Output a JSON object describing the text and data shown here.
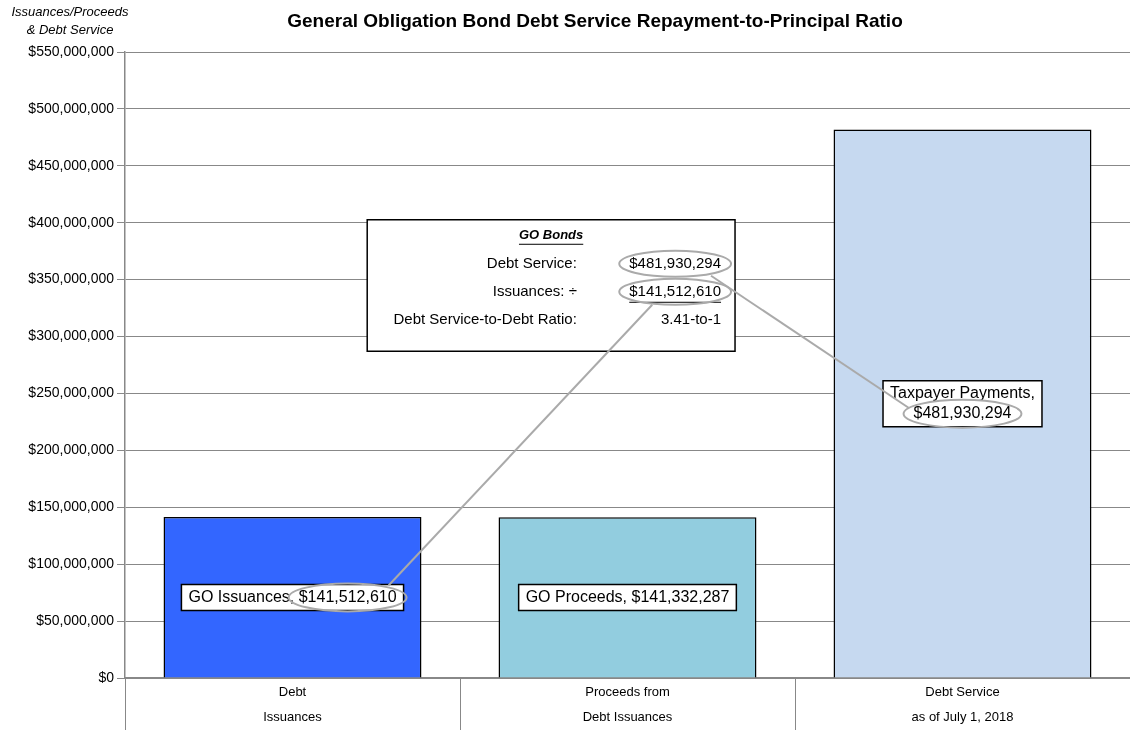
{
  "chart_data": {
    "type": "bar",
    "title": "General Obligation Bond Debt Service Repayment-to-Principal Ratio",
    "ylabel": "Issuances/Proceeds\n& Debt Service",
    "categories": [
      "Debt\nIssuances",
      "Proceeds from\nDebt Issuances",
      "Debt Service\nas of July 1, 2018"
    ],
    "values": [
      141512610,
      141332287,
      481930294
    ],
    "colors": [
      "#3366ff",
      "#92cddf",
      "#c6d9f0"
    ],
    "value_labels": [
      "GO Issuances, $141,512,610",
      "GO Proceeds, $141,332,287",
      "Taxpayer Payments,\n$481,930,294"
    ],
    "ylim": [
      0,
      550000000
    ],
    "yticks": [
      {
        "value": 0,
        "label": "$0"
      },
      {
        "value": 50000000,
        "label": "$50,000,000"
      },
      {
        "value": 100000000,
        "label": "$100,000,000"
      },
      {
        "value": 150000000,
        "label": "$150,000,000"
      },
      {
        "value": 200000000,
        "label": "$200,000,000"
      },
      {
        "value": 250000000,
        "label": "$250,000,000"
      },
      {
        "value": 300000000,
        "label": "$300,000,000"
      },
      {
        "value": 350000000,
        "label": "$350,000,000"
      },
      {
        "value": 400000000,
        "label": "$400,000,000"
      },
      {
        "value": 450000000,
        "label": "$450,000,000"
      },
      {
        "value": 500000000,
        "label": "$500,000,000"
      },
      {
        "value": 550000000,
        "label": "$550,000,000"
      }
    ],
    "grid": "y",
    "legend": false,
    "annotations": [
      "GO Bonds",
      "Debt Service:",
      "$481,930,294",
      "Issuances: ÷",
      "$141,512,610",
      "Debt Service-to-Debt Ratio:",
      "3.41-to-1"
    ]
  }
}
